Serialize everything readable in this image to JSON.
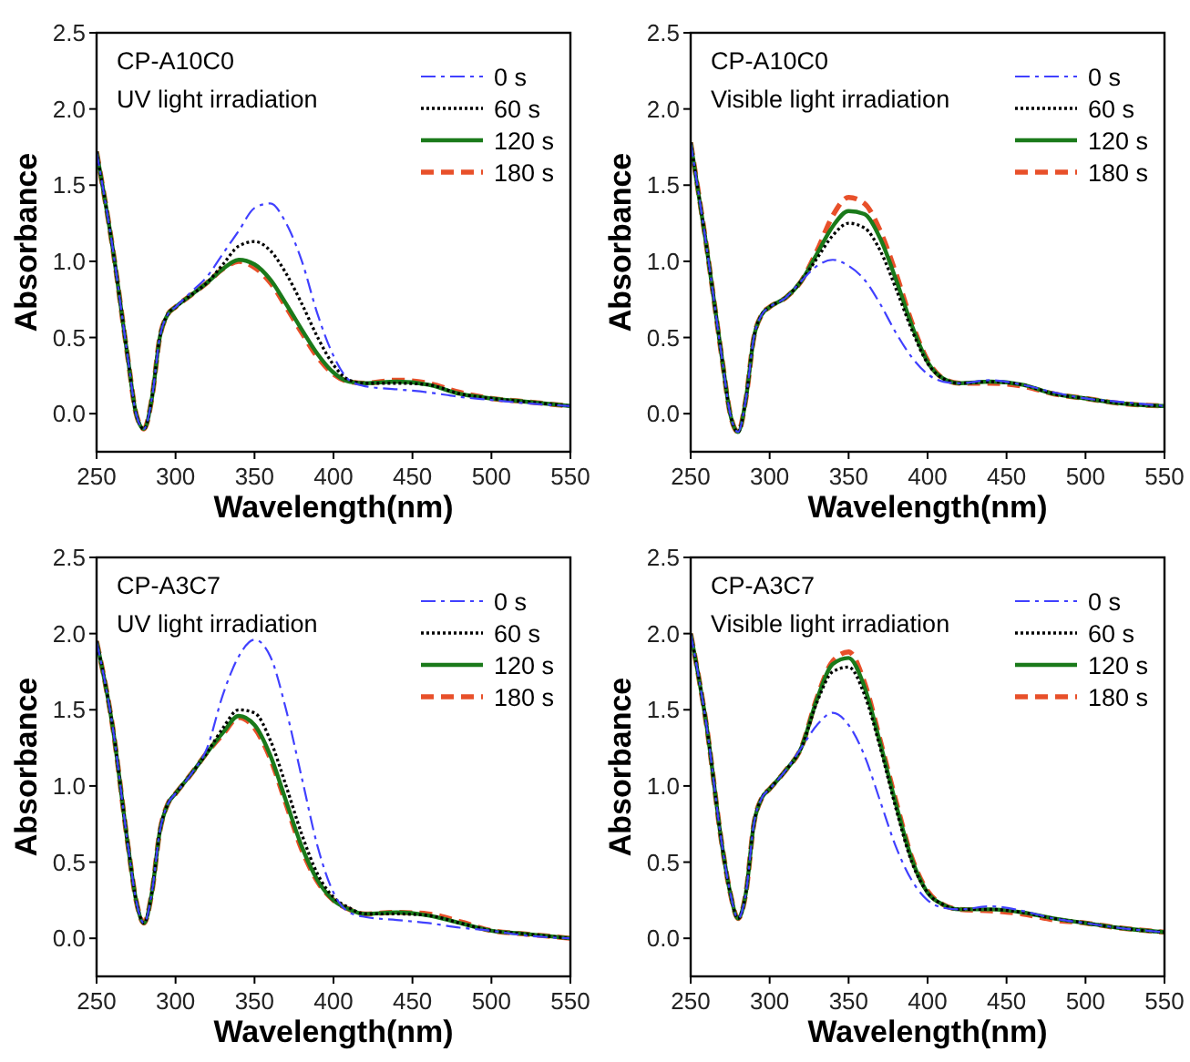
{
  "chart_data": [
    {
      "type": "line",
      "title": "CP-A10C0",
      "subtitle": "UV light irradiation",
      "xlabel": "Wavelength(nm)",
      "ylabel": "Absorbance",
      "xlim": [
        250,
        550
      ],
      "xticks": [
        250,
        300,
        350,
        400,
        450,
        500,
        550
      ],
      "ylim": [
        -0.25,
        2.5
      ],
      "yticks": [
        {
          "value": 0,
          "label": "0.0"
        },
        {
          "value": 0.5,
          "label": "0.5"
        },
        {
          "value": 1,
          "label": "1.0"
        },
        {
          "value": 1.5,
          "label": "1.5"
        },
        {
          "value": 2,
          "label": "2.0"
        },
        {
          "value": 2.5,
          "label": "2.5"
        }
      ],
      "grid": false,
      "legend": "top right",
      "marker": "none",
      "x": [
        250,
        260,
        270,
        275,
        280,
        285,
        290,
        295,
        300,
        310,
        320,
        330,
        340,
        350,
        360,
        370,
        380,
        390,
        400,
        410,
        420,
        440,
        460,
        480,
        500,
        520,
        550
      ],
      "series": [
        {
          "name": "0 s",
          "color": "#4040ff",
          "line_style": "dashdot",
          "values": [
            1.72,
            1.1,
            0.35,
            0.0,
            -0.1,
            0.1,
            0.5,
            0.65,
            0.7,
            0.8,
            0.9,
            1.05,
            1.2,
            1.35,
            1.38,
            1.25,
            1.0,
            0.65,
            0.38,
            0.22,
            0.18,
            0.16,
            0.14,
            0.11,
            0.09,
            0.07,
            0.05
          ]
        },
        {
          "name": "60 s",
          "color": "#000000",
          "line_style": "dotted",
          "values": [
            1.72,
            1.1,
            0.35,
            0.0,
            -0.1,
            0.1,
            0.5,
            0.65,
            0.7,
            0.78,
            0.86,
            0.98,
            1.1,
            1.13,
            1.07,
            0.92,
            0.72,
            0.5,
            0.32,
            0.22,
            0.2,
            0.2,
            0.19,
            0.13,
            0.1,
            0.08,
            0.05
          ]
        },
        {
          "name": "120 s",
          "color": "#1a7a1a",
          "line_style": "solid",
          "values": [
            1.72,
            1.1,
            0.35,
            0.0,
            -0.1,
            0.1,
            0.5,
            0.65,
            0.7,
            0.78,
            0.86,
            0.95,
            1.01,
            0.98,
            0.88,
            0.72,
            0.55,
            0.39,
            0.27,
            0.21,
            0.2,
            0.21,
            0.19,
            0.13,
            0.1,
            0.08,
            0.05
          ]
        },
        {
          "name": "180 s",
          "color": "#e8502a",
          "line_style": "dashed",
          "values": [
            1.72,
            1.1,
            0.35,
            0.0,
            -0.1,
            0.1,
            0.5,
            0.65,
            0.7,
            0.78,
            0.86,
            0.95,
            1.0,
            0.96,
            0.86,
            0.7,
            0.53,
            0.37,
            0.26,
            0.21,
            0.2,
            0.22,
            0.2,
            0.14,
            0.1,
            0.08,
            0.05
          ]
        }
      ]
    },
    {
      "type": "line",
      "title": "CP-A10C0",
      "subtitle": "Visible light irradiation",
      "xlabel": "Wavelength(nm)",
      "ylabel": "Absorbance",
      "xlim": [
        250,
        550
      ],
      "xticks": [
        250,
        300,
        350,
        400,
        450,
        500,
        550
      ],
      "ylim": [
        -0.25,
        2.5
      ],
      "yticks": [
        {
          "value": 0,
          "label": "0.0"
        },
        {
          "value": 0.5,
          "label": "0.5"
        },
        {
          "value": 1,
          "label": "1.0"
        },
        {
          "value": 1.5,
          "label": "1.5"
        },
        {
          "value": 2,
          "label": "2.0"
        },
        {
          "value": 2.5,
          "label": "2.5"
        }
      ],
      "grid": false,
      "legend": "top right",
      "marker": "none",
      "x": [
        250,
        260,
        270,
        275,
        280,
        285,
        290,
        295,
        300,
        310,
        320,
        330,
        340,
        350,
        360,
        370,
        380,
        390,
        400,
        410,
        420,
        440,
        460,
        480,
        500,
        520,
        550
      ],
      "series": [
        {
          "name": "0 s",
          "color": "#4040ff",
          "line_style": "dashdot",
          "values": [
            1.78,
            1.1,
            0.35,
            0.0,
            -0.12,
            0.1,
            0.5,
            0.65,
            0.7,
            0.76,
            0.87,
            0.97,
            1.01,
            0.97,
            0.88,
            0.72,
            0.53,
            0.37,
            0.26,
            0.21,
            0.2,
            0.22,
            0.19,
            0.14,
            0.1,
            0.08,
            0.05
          ]
        },
        {
          "name": "60 s",
          "color": "#000000",
          "line_style": "dotted",
          "values": [
            1.78,
            1.1,
            0.35,
            0.0,
            -0.12,
            0.1,
            0.5,
            0.65,
            0.7,
            0.76,
            0.87,
            1.02,
            1.17,
            1.25,
            1.22,
            1.07,
            0.82,
            0.55,
            0.33,
            0.23,
            0.2,
            0.21,
            0.19,
            0.13,
            0.1,
            0.07,
            0.05
          ]
        },
        {
          "name": "120 s",
          "color": "#1a7a1a",
          "line_style": "solid",
          "values": [
            1.78,
            1.1,
            0.35,
            0.0,
            -0.12,
            0.1,
            0.5,
            0.65,
            0.7,
            0.76,
            0.87,
            1.05,
            1.23,
            1.33,
            1.31,
            1.15,
            0.88,
            0.58,
            0.34,
            0.23,
            0.2,
            0.21,
            0.19,
            0.13,
            0.1,
            0.07,
            0.05
          ]
        },
        {
          "name": "180 s",
          "color": "#e8502a",
          "line_style": "dashed",
          "values": [
            1.78,
            1.1,
            0.35,
            0.0,
            -0.12,
            0.1,
            0.5,
            0.65,
            0.7,
            0.76,
            0.87,
            1.07,
            1.3,
            1.42,
            1.38,
            1.2,
            0.92,
            0.6,
            0.35,
            0.23,
            0.2,
            0.2,
            0.18,
            0.13,
            0.1,
            0.07,
            0.05
          ]
        }
      ]
    },
    {
      "type": "line",
      "title": "CP-A3C7",
      "subtitle": "UV light irradiation",
      "xlabel": "Wavelength(nm)",
      "ylabel": "Absorbance",
      "xlim": [
        250,
        550
      ],
      "xticks": [
        250,
        300,
        350,
        400,
        450,
        500,
        550
      ],
      "ylim": [
        -0.25,
        2.5
      ],
      "yticks": [
        {
          "value": 0,
          "label": "0.0"
        },
        {
          "value": 0.5,
          "label": "0.5"
        },
        {
          "value": 1,
          "label": "1.0"
        },
        {
          "value": 1.5,
          "label": "1.5"
        },
        {
          "value": 2,
          "label": "2.0"
        },
        {
          "value": 2.5,
          "label": "2.5"
        }
      ],
      "grid": false,
      "legend": "top right",
      "marker": "none",
      "x": [
        250,
        260,
        270,
        275,
        280,
        285,
        290,
        295,
        300,
        310,
        320,
        330,
        340,
        350,
        360,
        370,
        380,
        390,
        400,
        410,
        420,
        440,
        460,
        480,
        500,
        520,
        550
      ],
      "series": [
        {
          "name": "0 s",
          "color": "#4040ff",
          "line_style": "dashdot",
          "values": [
            1.95,
            1.4,
            0.6,
            0.25,
            0.1,
            0.3,
            0.7,
            0.88,
            0.95,
            1.08,
            1.25,
            1.6,
            1.85,
            1.96,
            1.85,
            1.5,
            1.05,
            0.6,
            0.3,
            0.17,
            0.14,
            0.12,
            0.1,
            0.07,
            0.05,
            0.02,
            0.0
          ]
        },
        {
          "name": "60 s",
          "color": "#000000",
          "line_style": "dotted",
          "values": [
            1.95,
            1.4,
            0.6,
            0.25,
            0.1,
            0.3,
            0.7,
            0.88,
            0.95,
            1.08,
            1.22,
            1.38,
            1.5,
            1.48,
            1.3,
            1.0,
            0.68,
            0.42,
            0.27,
            0.2,
            0.16,
            0.16,
            0.15,
            0.1,
            0.05,
            0.03,
            0.0
          ]
        },
        {
          "name": "120 s",
          "color": "#1a7a1a",
          "line_style": "solid",
          "values": [
            1.95,
            1.4,
            0.6,
            0.25,
            0.1,
            0.3,
            0.7,
            0.88,
            0.95,
            1.08,
            1.22,
            1.35,
            1.46,
            1.4,
            1.2,
            0.9,
            0.6,
            0.38,
            0.25,
            0.19,
            0.16,
            0.17,
            0.15,
            0.1,
            0.05,
            0.03,
            0.0
          ]
        },
        {
          "name": "180 s",
          "color": "#e8502a",
          "line_style": "dashed",
          "values": [
            1.95,
            1.4,
            0.6,
            0.25,
            0.1,
            0.3,
            0.7,
            0.88,
            0.95,
            1.08,
            1.22,
            1.34,
            1.45,
            1.38,
            1.18,
            0.88,
            0.58,
            0.37,
            0.25,
            0.19,
            0.16,
            0.17,
            0.16,
            0.11,
            0.05,
            0.03,
            0.0
          ]
        }
      ]
    },
    {
      "type": "line",
      "title": "CP-A3C7",
      "subtitle": "Visible light irradiation",
      "xlabel": "Wavelength(nm)",
      "ylabel": "Absorbance",
      "xlim": [
        250,
        550
      ],
      "xticks": [
        250,
        300,
        350,
        400,
        450,
        500,
        550
      ],
      "ylim": [
        -0.25,
        2.5
      ],
      "yticks": [
        {
          "value": 0,
          "label": "0.0"
        },
        {
          "value": 0.5,
          "label": "0.5"
        },
        {
          "value": 1,
          "label": "1.0"
        },
        {
          "value": 1.5,
          "label": "1.5"
        },
        {
          "value": 2,
          "label": "2.0"
        },
        {
          "value": 2.5,
          "label": "2.5"
        }
      ],
      "grid": false,
      "legend": "top right",
      "marker": "none",
      "x": [
        250,
        260,
        270,
        275,
        280,
        285,
        290,
        295,
        300,
        310,
        320,
        330,
        340,
        350,
        360,
        370,
        380,
        390,
        400,
        410,
        420,
        440,
        460,
        480,
        500,
        520,
        550
      ],
      "series": [
        {
          "name": "0 s",
          "color": "#4040ff",
          "line_style": "dashdot",
          "values": [
            2.0,
            1.4,
            0.6,
            0.3,
            0.13,
            0.3,
            0.75,
            0.92,
            0.98,
            1.1,
            1.25,
            1.4,
            1.48,
            1.4,
            1.2,
            0.9,
            0.6,
            0.38,
            0.25,
            0.2,
            0.19,
            0.21,
            0.18,
            0.13,
            0.1,
            0.07,
            0.04
          ]
        },
        {
          "name": "60 s",
          "color": "#000000",
          "line_style": "dotted",
          "values": [
            2.0,
            1.4,
            0.6,
            0.3,
            0.13,
            0.3,
            0.75,
            0.92,
            0.98,
            1.1,
            1.25,
            1.55,
            1.75,
            1.78,
            1.6,
            1.25,
            0.85,
            0.5,
            0.3,
            0.22,
            0.19,
            0.19,
            0.17,
            0.13,
            0.1,
            0.07,
            0.04
          ]
        },
        {
          "name": "120 s",
          "color": "#1a7a1a",
          "line_style": "solid",
          "values": [
            2.0,
            1.4,
            0.6,
            0.3,
            0.13,
            0.3,
            0.75,
            0.92,
            0.98,
            1.1,
            1.25,
            1.57,
            1.8,
            1.84,
            1.65,
            1.28,
            0.88,
            0.52,
            0.3,
            0.22,
            0.19,
            0.19,
            0.17,
            0.13,
            0.1,
            0.07,
            0.04
          ]
        },
        {
          "name": "180 s",
          "color": "#e8502a",
          "line_style": "dashed",
          "values": [
            2.0,
            1.4,
            0.6,
            0.3,
            0.13,
            0.3,
            0.75,
            0.92,
            0.98,
            1.1,
            1.25,
            1.58,
            1.82,
            1.88,
            1.68,
            1.3,
            0.9,
            0.53,
            0.31,
            0.22,
            0.19,
            0.18,
            0.16,
            0.12,
            0.1,
            0.07,
            0.04
          ]
        }
      ]
    }
  ]
}
